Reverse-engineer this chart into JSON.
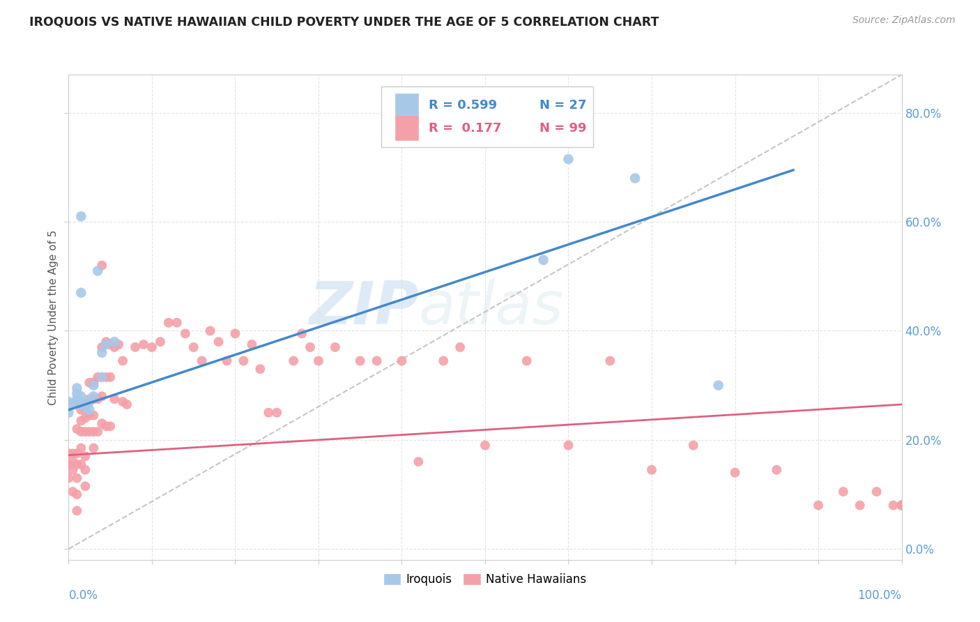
{
  "title": "IROQUOIS VS NATIVE HAWAIIAN CHILD POVERTY UNDER THE AGE OF 5 CORRELATION CHART",
  "source": "Source: ZipAtlas.com",
  "ylabel": "Child Poverty Under the Age of 5",
  "legend_iroquois_r": "R = 0.599",
  "legend_iroquois_n": "N = 27",
  "legend_hawaiian_r": "R =  0.177",
  "legend_hawaiian_n": "N = 99",
  "iroquois_color": "#a8c8e8",
  "hawaiian_color": "#f4a0a8",
  "iroquois_line_color": "#4488cc",
  "hawaiian_line_color": "#e06080",
  "dashed_line_color": "#bbbbbb",
  "background_color": "#ffffff",
  "watermark_zip": "ZIP",
  "watermark_atlas": "atlas",
  "xlim": [
    0.0,
    1.0
  ],
  "ylim": [
    -0.02,
    0.87
  ],
  "yticks": [
    0.0,
    0.2,
    0.4,
    0.6,
    0.8
  ],
  "ytick_labels_right": [
    "0.0%",
    "20.0%",
    "40.0%",
    "60.0%",
    "80.0%"
  ],
  "iroquois_x": [
    0.0,
    0.0,
    0.0,
    0.01,
    0.01,
    0.01,
    0.01,
    0.01,
    0.015,
    0.015,
    0.015,
    0.02,
    0.02,
    0.02,
    0.025,
    0.025,
    0.03,
    0.03,
    0.035,
    0.04,
    0.04,
    0.045,
    0.055,
    0.57,
    0.6,
    0.68,
    0.78
  ],
  "iroquois_y": [
    0.25,
    0.265,
    0.27,
    0.275,
    0.285,
    0.295,
    0.27,
    0.265,
    0.61,
    0.47,
    0.28,
    0.27,
    0.265,
    0.26,
    0.255,
    0.27,
    0.3,
    0.28,
    0.51,
    0.36,
    0.315,
    0.375,
    0.38,
    0.53,
    0.715,
    0.68,
    0.3
  ],
  "hawaiian_x": [
    0.0,
    0.0,
    0.0,
    0.005,
    0.005,
    0.005,
    0.005,
    0.01,
    0.01,
    0.01,
    0.01,
    0.01,
    0.01,
    0.015,
    0.015,
    0.015,
    0.015,
    0.015,
    0.02,
    0.02,
    0.02,
    0.02,
    0.02,
    0.02,
    0.025,
    0.025,
    0.025,
    0.025,
    0.03,
    0.03,
    0.03,
    0.03,
    0.03,
    0.035,
    0.035,
    0.035,
    0.04,
    0.04,
    0.04,
    0.04,
    0.045,
    0.045,
    0.045,
    0.05,
    0.05,
    0.05,
    0.055,
    0.055,
    0.06,
    0.065,
    0.065,
    0.07,
    0.08,
    0.09,
    0.1,
    0.11,
    0.12,
    0.13,
    0.14,
    0.15,
    0.16,
    0.17,
    0.18,
    0.19,
    0.2,
    0.21,
    0.22,
    0.23,
    0.24,
    0.25,
    0.27,
    0.28,
    0.29,
    0.3,
    0.32,
    0.35,
    0.37,
    0.4,
    0.42,
    0.45,
    0.47,
    0.5,
    0.55,
    0.6,
    0.65,
    0.7,
    0.75,
    0.8,
    0.85,
    0.9,
    0.93,
    0.95,
    0.97,
    0.99,
    1.0,
    1.0,
    1.0,
    1.0,
    1.0
  ],
  "hawaiian_y": [
    0.175,
    0.155,
    0.13,
    0.175,
    0.16,
    0.145,
    0.105,
    0.22,
    0.175,
    0.155,
    0.13,
    0.1,
    0.07,
    0.255,
    0.235,
    0.215,
    0.185,
    0.155,
    0.255,
    0.24,
    0.215,
    0.17,
    0.145,
    0.115,
    0.305,
    0.275,
    0.245,
    0.215,
    0.305,
    0.275,
    0.245,
    0.215,
    0.185,
    0.315,
    0.275,
    0.215,
    0.52,
    0.37,
    0.28,
    0.23,
    0.38,
    0.315,
    0.225,
    0.375,
    0.315,
    0.225,
    0.37,
    0.275,
    0.375,
    0.345,
    0.27,
    0.265,
    0.37,
    0.375,
    0.37,
    0.38,
    0.415,
    0.415,
    0.395,
    0.37,
    0.345,
    0.4,
    0.38,
    0.345,
    0.395,
    0.345,
    0.375,
    0.33,
    0.25,
    0.25,
    0.345,
    0.395,
    0.37,
    0.345,
    0.37,
    0.345,
    0.345,
    0.345,
    0.16,
    0.345,
    0.37,
    0.19,
    0.345,
    0.19,
    0.345,
    0.145,
    0.19,
    0.14,
    0.145,
    0.08,
    0.105,
    0.08,
    0.105,
    0.08,
    0.08,
    0.08,
    0.08,
    0.08,
    0.08
  ],
  "iroquois_line_x": [
    0.0,
    0.87
  ],
  "iroquois_line_y": [
    0.255,
    0.695
  ],
  "hawaiian_line_x": [
    0.0,
    1.0
  ],
  "hawaiian_line_y": [
    0.172,
    0.265
  ],
  "dash_line_x": [
    0.0,
    1.0
  ],
  "dash_line_y": [
    0.0,
    0.87
  ]
}
